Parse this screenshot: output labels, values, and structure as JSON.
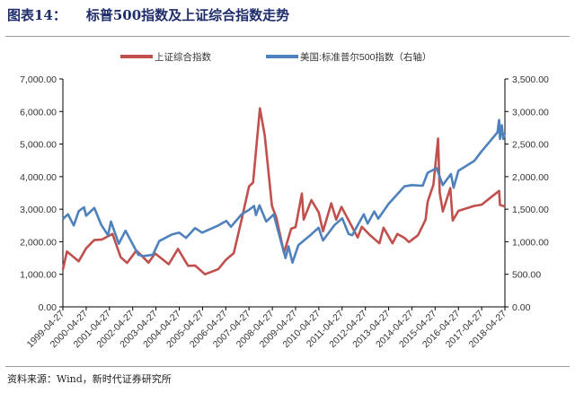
{
  "header": {
    "figure_number": "图表14：",
    "title": "标普500指数及上证综合指数走势"
  },
  "footer": {
    "source": "资料来源：Wind，新时代证券研究所"
  },
  "chart_data": {
    "type": "line",
    "x_tick_labels": [
      "1999-04-27",
      "2000-04-27",
      "2001-04-27",
      "2002-04-27",
      "2003-04-27",
      "2004-04-27",
      "2005-04-27",
      "2006-04-27",
      "2007-04-27",
      "2008-04-27",
      "2009-04-27",
      "2010-04-27",
      "2011-04-27",
      "2012-04-27",
      "2013-04-27",
      "2014-04-27",
      "2015-04-27",
      "2016-04-27",
      "2017-04-27",
      "2018-04-27"
    ],
    "y_left": {
      "range": [
        0,
        7000
      ],
      "ticks": [
        "0.00",
        "1,000.00",
        "2,000.00",
        "3,000.00",
        "4,000.00",
        "5,000.00",
        "6,000.00",
        "7,000.00"
      ]
    },
    "y_right": {
      "range": [
        0,
        3500
      ],
      "ticks": [
        "0.00",
        "500.00",
        "1,000.00",
        "1,500.00",
        "2,000.00",
        "2,500.00",
        "3,000.00",
        "3,500.00"
      ]
    },
    "legend_position": "top",
    "series": [
      {
        "name": "上证综合指数",
        "axis": "left",
        "color": "#c0504d",
        "points": [
          [
            "1999-04-27",
            1150
          ],
          [
            "1999-06-30",
            1700
          ],
          [
            "1999-12-31",
            1400
          ],
          [
            "2000-04-27",
            1800
          ],
          [
            "2000-08-31",
            2050
          ],
          [
            "2000-12-31",
            2070
          ],
          [
            "2001-06-14",
            2240
          ],
          [
            "2001-10-22",
            1520
          ],
          [
            "2002-01-29",
            1350
          ],
          [
            "2002-06-24",
            1730
          ],
          [
            "2002-12-31",
            1360
          ],
          [
            "2003-04-15",
            1640
          ],
          [
            "2003-11-13",
            1310
          ],
          [
            "2004-04-07",
            1780
          ],
          [
            "2004-09-13",
            1260
          ],
          [
            "2004-12-31",
            1270
          ],
          [
            "2005-06-06",
            1000
          ],
          [
            "2005-12-31",
            1160
          ],
          [
            "2006-04-27",
            1440
          ],
          [
            "2006-08-31",
            1650
          ],
          [
            "2006-12-31",
            2680
          ],
          [
            "2007-04-27",
            3700
          ],
          [
            "2007-06-30",
            3820
          ],
          [
            "2007-10-16",
            6100
          ],
          [
            "2007-12-31",
            5260
          ],
          [
            "2008-04-22",
            3100
          ],
          [
            "2008-06-30",
            2740
          ],
          [
            "2008-10-28",
            1660
          ],
          [
            "2009-02-17",
            2400
          ],
          [
            "2009-04-27",
            2450
          ],
          [
            "2009-08-04",
            3480
          ],
          [
            "2009-09-01",
            2680
          ],
          [
            "2009-12-31",
            3280
          ],
          [
            "2010-04-27",
            2900
          ],
          [
            "2010-07-02",
            2320
          ],
          [
            "2010-11-08",
            3180
          ],
          [
            "2011-01-25",
            2680
          ],
          [
            "2011-04-18",
            3070
          ],
          [
            "2011-08-31",
            2570
          ],
          [
            "2011-12-28",
            2130
          ],
          [
            "2012-03-02",
            2460
          ],
          [
            "2012-06-29",
            2220
          ],
          [
            "2012-12-03",
            1950
          ],
          [
            "2013-02-06",
            2430
          ],
          [
            "2013-06-27",
            1950
          ],
          [
            "2013-09-12",
            2240
          ],
          [
            "2013-12-31",
            2120
          ],
          [
            "2014-03-12",
            1990
          ],
          [
            "2014-07-31",
            2200
          ],
          [
            "2014-11-28",
            2680
          ],
          [
            "2014-12-31",
            3230
          ],
          [
            "2015-03-31",
            3750
          ],
          [
            "2015-06-12",
            5170
          ],
          [
            "2015-07-08",
            3510
          ],
          [
            "2015-08-26",
            2930
          ],
          [
            "2015-12-22",
            3650
          ],
          [
            "2016-01-28",
            2650
          ],
          [
            "2016-04-27",
            2950
          ],
          [
            "2016-12-31",
            3100
          ],
          [
            "2017-04-27",
            3140
          ],
          [
            "2017-11-13",
            3450
          ],
          [
            "2018-01-26",
            3560
          ],
          [
            "2018-02-09",
            3130
          ],
          [
            "2018-04-27",
            3080
          ]
        ]
      },
      {
        "name": "美国:标准普尔500指数（右轴）",
        "axis": "right",
        "color": "#4f81bd",
        "points": [
          [
            "1999-04-27",
            1350
          ],
          [
            "1999-07-16",
            1420
          ],
          [
            "1999-10-15",
            1250
          ],
          [
            "1999-12-31",
            1470
          ],
          [
            "2000-03-24",
            1530
          ],
          [
            "2000-04-27",
            1400
          ],
          [
            "2000-09-01",
            1520
          ],
          [
            "2000-12-20",
            1260
          ],
          [
            "2001-04-04",
            1100
          ],
          [
            "2001-05-21",
            1310
          ],
          [
            "2001-09-21",
            970
          ],
          [
            "2002-01-04",
            1170
          ],
          [
            "2002-07-23",
            800
          ],
          [
            "2002-10-09",
            780
          ],
          [
            "2003-03-11",
            800
          ],
          [
            "2003-06-17",
            1010
          ],
          [
            "2003-12-31",
            1110
          ],
          [
            "2004-04-27",
            1140
          ],
          [
            "2004-08-12",
            1060
          ],
          [
            "2004-12-31",
            1210
          ],
          [
            "2005-04-20",
            1140
          ],
          [
            "2005-12-31",
            1250
          ],
          [
            "2006-05-05",
            1320
          ],
          [
            "2006-07-18",
            1230
          ],
          [
            "2006-12-31",
            1420
          ],
          [
            "2007-04-27",
            1490
          ],
          [
            "2007-07-16",
            1550
          ],
          [
            "2007-08-15",
            1410
          ],
          [
            "2007-10-09",
            1560
          ],
          [
            "2008-01-22",
            1310
          ],
          [
            "2008-05-19",
            1420
          ],
          [
            "2008-07-15",
            1210
          ],
          [
            "2008-11-20",
            750
          ],
          [
            "2009-01-06",
            930
          ],
          [
            "2009-03-09",
            680
          ],
          [
            "2009-06-12",
            950
          ],
          [
            "2009-12-31",
            1115
          ],
          [
            "2010-04-23",
            1215
          ],
          [
            "2010-07-02",
            1020
          ],
          [
            "2010-12-31",
            1258
          ],
          [
            "2011-04-29",
            1360
          ],
          [
            "2011-08-08",
            1120
          ],
          [
            "2011-10-03",
            1100
          ],
          [
            "2011-12-31",
            1260
          ],
          [
            "2012-04-02",
            1420
          ],
          [
            "2012-06-01",
            1280
          ],
          [
            "2012-09-14",
            1465
          ],
          [
            "2012-11-15",
            1355
          ],
          [
            "2013-04-27",
            1580
          ],
          [
            "2013-12-31",
            1850
          ],
          [
            "2014-04-27",
            1870
          ],
          [
            "2014-10-15",
            1860
          ],
          [
            "2014-12-31",
            2060
          ],
          [
            "2015-05-21",
            2130
          ],
          [
            "2015-08-25",
            1870
          ],
          [
            "2015-12-31",
            2040
          ],
          [
            "2016-02-11",
            1830
          ],
          [
            "2016-04-27",
            2090
          ],
          [
            "2016-12-31",
            2240
          ],
          [
            "2017-04-27",
            2390
          ],
          [
            "2017-12-31",
            2680
          ],
          [
            "2018-01-26",
            2870
          ],
          [
            "2018-02-08",
            2580
          ],
          [
            "2018-03-09",
            2790
          ],
          [
            "2018-04-02",
            2580
          ],
          [
            "2018-04-27",
            2670
          ]
        ]
      }
    ]
  }
}
